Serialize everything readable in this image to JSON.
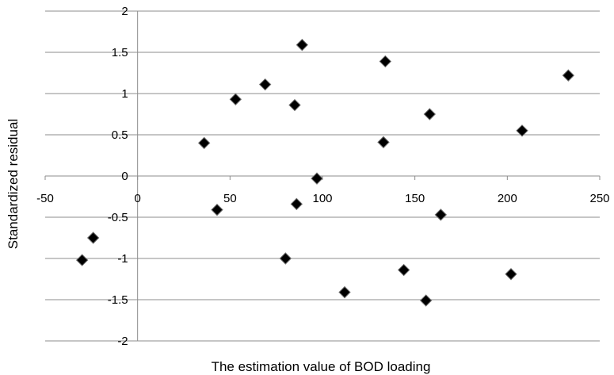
{
  "chart_data": {
    "type": "scatter",
    "title": "",
    "xlabel": "The estimation value of BOD loading",
    "ylabel": "Standardized residual",
    "xlim": [
      -50,
      250
    ],
    "ylim": [
      -2,
      2
    ],
    "x_ticks": [
      "-50",
      "0",
      "50",
      "100",
      "150",
      "200",
      "250"
    ],
    "y_ticks": [
      "2",
      "1.5",
      "1",
      "0.5",
      "0",
      "-0.5",
      "-1",
      "-1.5",
      "-2"
    ],
    "grid": "horizontal",
    "legend": "none",
    "marker": "diamond",
    "marker_color": "#000000",
    "points": [
      {
        "x": -30,
        "y": -1.02
      },
      {
        "x": -24,
        "y": -0.75
      },
      {
        "x": 36,
        "y": 0.4
      },
      {
        "x": 43,
        "y": -0.41
      },
      {
        "x": 53,
        "y": 0.93
      },
      {
        "x": 69,
        "y": 1.11
      },
      {
        "x": 80,
        "y": -1.0
      },
      {
        "x": 85,
        "y": 0.86
      },
      {
        "x": 86,
        "y": -0.34
      },
      {
        "x": 89,
        "y": 1.59
      },
      {
        "x": 97,
        "y": -0.03
      },
      {
        "x": 112,
        "y": -1.41
      },
      {
        "x": 133,
        "y": 0.41
      },
      {
        "x": 134,
        "y": 1.39
      },
      {
        "x": 144,
        "y": -1.14
      },
      {
        "x": 156,
        "y": -1.51
      },
      {
        "x": 158,
        "y": 0.75
      },
      {
        "x": 164,
        "y": -0.47
      },
      {
        "x": 202,
        "y": -1.19
      },
      {
        "x": 208,
        "y": 0.55
      },
      {
        "x": 233,
        "y": 1.22
      }
    ]
  }
}
